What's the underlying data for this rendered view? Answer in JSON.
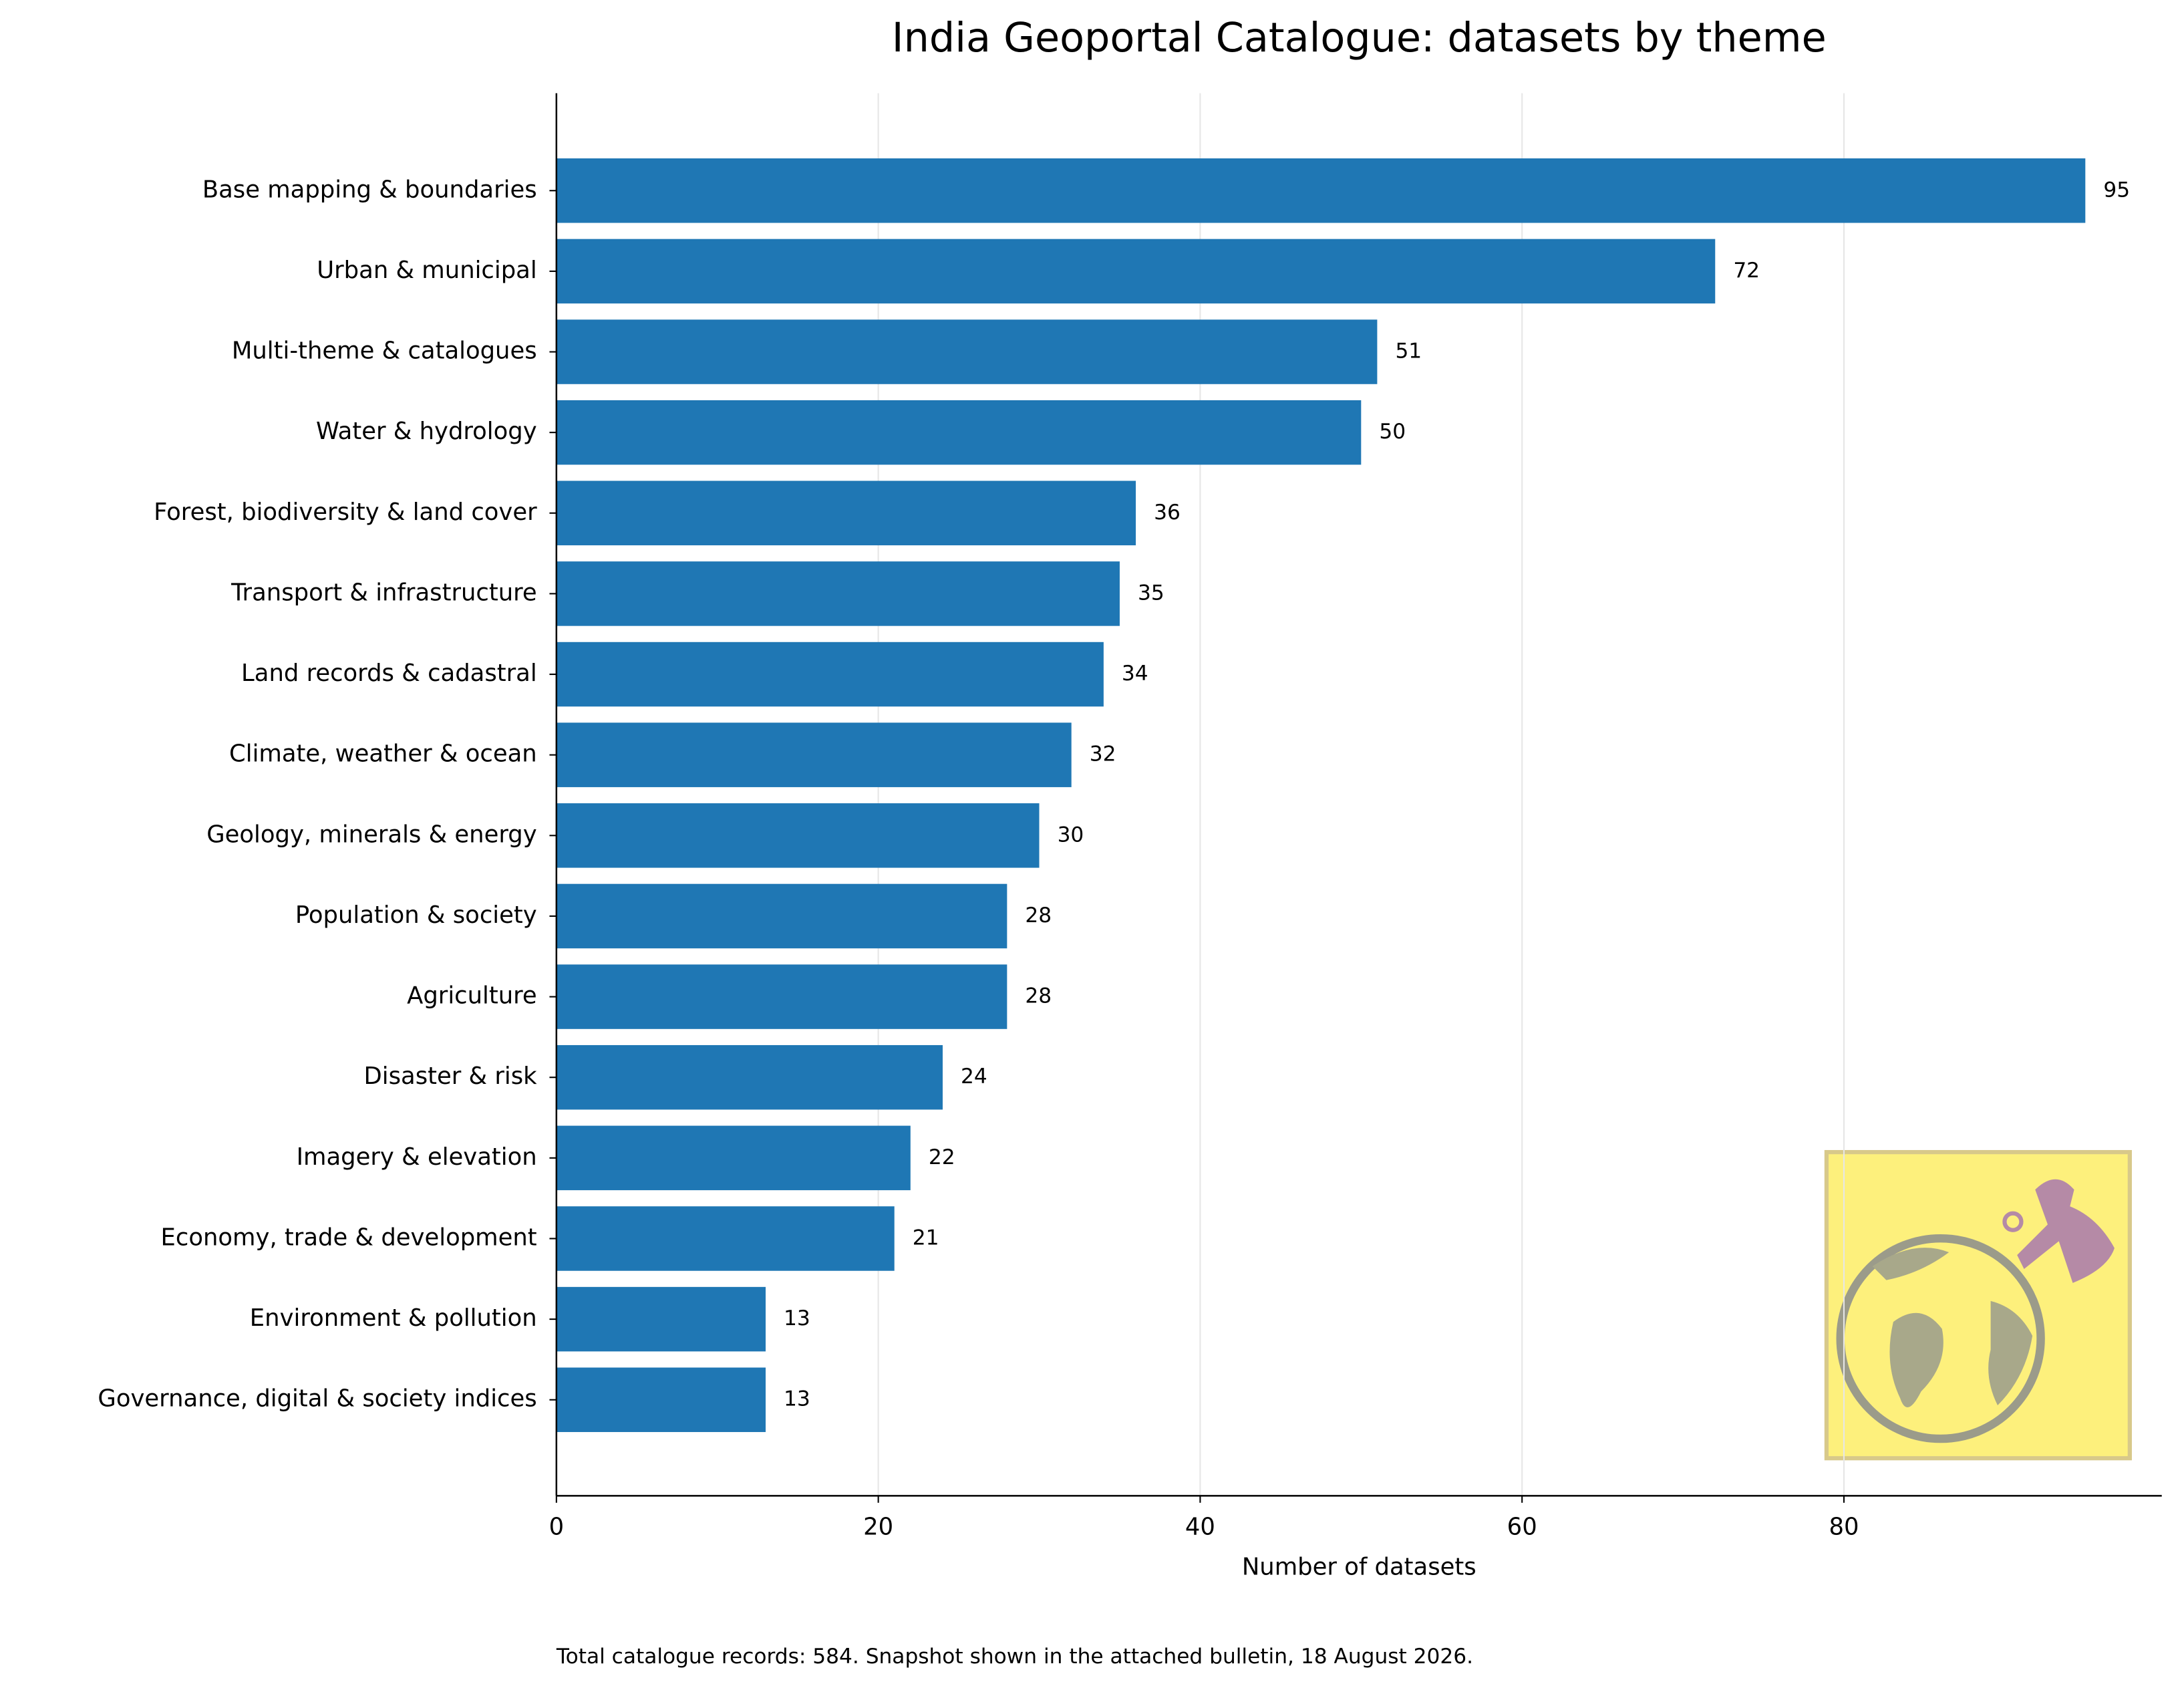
{
  "chart_data": {
    "type": "hbar",
    "title": "India Geoportal Catalogue: datasets by theme",
    "x_label": "Number of datasets",
    "note": "Total catalogue records: 584. Snapshot shown in the attached bulletin, 18 August 2026.",
    "categories": [
      "Base mapping & boundaries",
      "Urban & municipal",
      "Multi-theme & catalogues",
      "Water & hydrology",
      "Forest, biodiversity & land cover",
      "Transport & infrastructure",
      "Land records & cadastral",
      "Climate, weather & ocean",
      "Geology, minerals & energy",
      "Population & society",
      "Agriculture",
      "Disaster & risk",
      "Imagery & elevation",
      "Economy, trade & development",
      "Environment & pollution",
      "Governance, digital & society indices"
    ],
    "values": [
      95,
      72,
      51,
      50,
      36,
      35,
      34,
      32,
      30,
      28,
      28,
      24,
      22,
      21,
      13,
      13
    ],
    "color": "#1f77b4",
    "xlim": [
      0,
      99.75
    ],
    "xticks": [
      0,
      20,
      40,
      60,
      80
    ],
    "grid": true
  }
}
